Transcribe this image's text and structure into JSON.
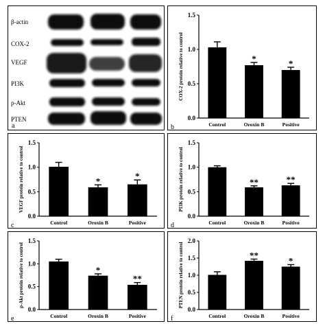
{
  "colors": {
    "bar": "#000000",
    "axis": "#000000",
    "blot_band": "#111111",
    "blot_bg": "#ffffff"
  },
  "panel_a": {
    "letter": "a",
    "bands": [
      "β-actin",
      "COX-2",
      "VEGF",
      "PI3K",
      "p-Akt",
      "PTEN"
    ]
  },
  "chart_data": [
    {
      "id": "b",
      "letter": "b",
      "type": "bar",
      "categories": [
        "Control",
        "Oroxin B",
        "Positive"
      ],
      "values": [
        1.03,
        0.77,
        0.7
      ],
      "errors": [
        0.08,
        0.04,
        0.04
      ],
      "significance": [
        "",
        "*",
        "*"
      ],
      "ylabel": "COX-2 protein relative to control",
      "ylim": [
        0,
        1.5
      ],
      "yticks": [
        "0.0",
        "0.5",
        "1.0",
        "1.5"
      ]
    },
    {
      "id": "c",
      "letter": "c",
      "type": "bar",
      "categories": [
        "Control",
        "Oroxin B",
        "Positive"
      ],
      "values": [
        1.01,
        0.59,
        0.65
      ],
      "errors": [
        0.09,
        0.05,
        0.09
      ],
      "significance": [
        "",
        "*",
        "*"
      ],
      "ylabel": "VEGF protein relative to control",
      "ylim": [
        0,
        1.5
      ],
      "yticks": [
        "0.0",
        "0.5",
        "1.0",
        "1.5"
      ]
    },
    {
      "id": "d",
      "letter": "d",
      "type": "bar",
      "categories": [
        "Control",
        "Oroxin B",
        "Positive"
      ],
      "values": [
        1.0,
        0.59,
        0.63
      ],
      "errors": [
        0.03,
        0.03,
        0.04
      ],
      "significance": [
        "",
        "**",
        "**"
      ],
      "ylabel": "PI3K protein relative to control",
      "ylim": [
        0,
        1.5
      ],
      "yticks": [
        "0.0",
        "0.5",
        "1.0",
        "1.5"
      ]
    },
    {
      "id": "e",
      "letter": "e",
      "type": "bar",
      "categories": [
        "Control",
        "Oroxin B",
        "Positive"
      ],
      "values": [
        1.05,
        0.74,
        0.54
      ],
      "errors": [
        0.05,
        0.04,
        0.05
      ],
      "significance": [
        "",
        "*",
        "**"
      ],
      "ylabel": "p-Akt protein relative to control",
      "ylim": [
        0,
        1.5
      ],
      "yticks": [
        "0.0",
        "0.5",
        "1.0",
        "1.5"
      ]
    },
    {
      "id": "f",
      "letter": "f",
      "type": "bar",
      "categories": [
        "Control",
        "Oroxin B",
        "Positive"
      ],
      "values": [
        1.01,
        1.42,
        1.25
      ],
      "errors": [
        0.09,
        0.05,
        0.06
      ],
      "significance": [
        "",
        "**",
        "*"
      ],
      "ylabel": "PTEN protein relative to control",
      "ylim": [
        0,
        2.0
      ],
      "yticks": [
        "0.0",
        "0.5",
        "1.0",
        "1.5",
        "2.0"
      ]
    }
  ]
}
